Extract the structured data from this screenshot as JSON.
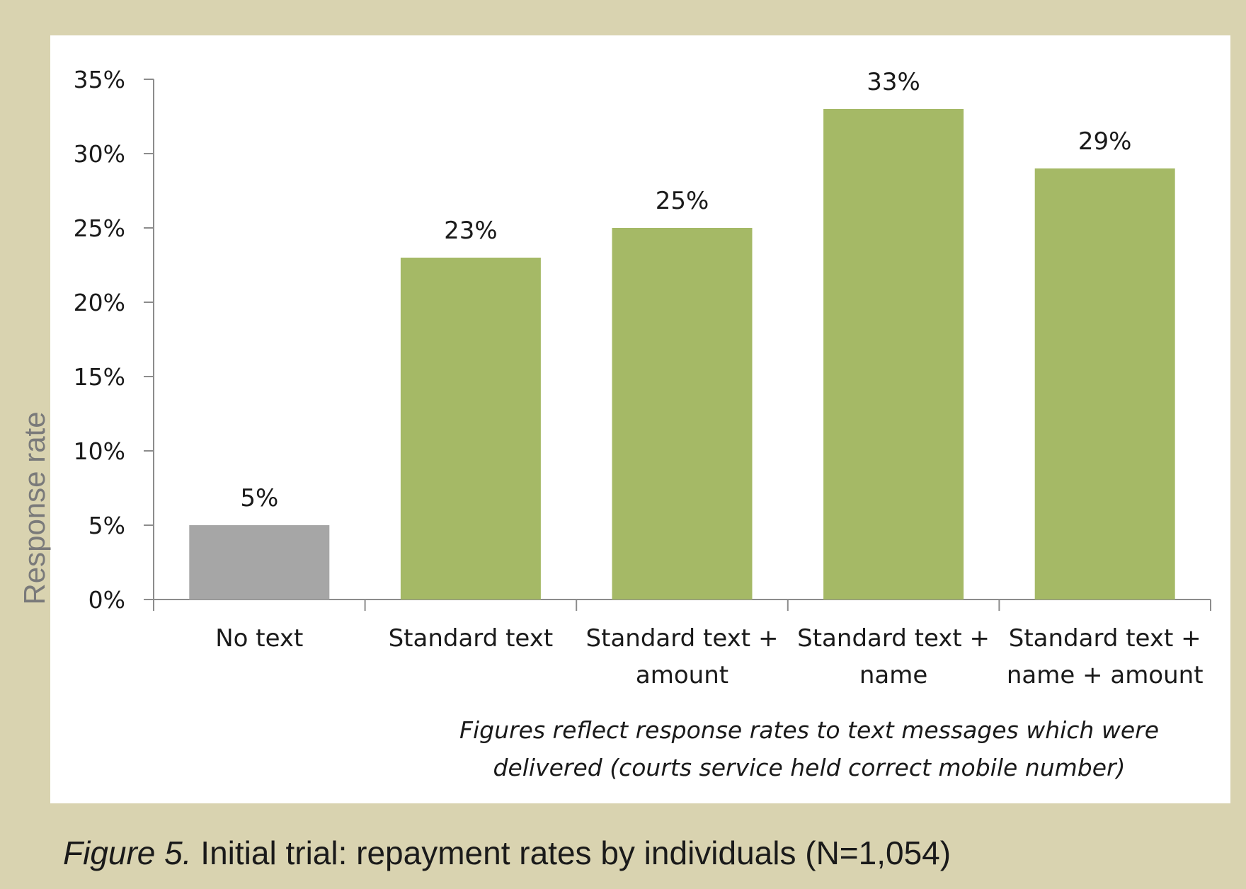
{
  "chart_data": {
    "type": "bar",
    "categories": [
      "No text",
      "Standard text",
      "Standard text +\namount",
      "Standard text +\nname",
      "Standard text +\nname + amount"
    ],
    "values": [
      5,
      23,
      25,
      33,
      29
    ],
    "data_labels": [
      "5%",
      "23%",
      "25%",
      "33%",
      "29%"
    ],
    "bar_colors": [
      "#a6a6a6",
      "#a5b966",
      "#a5b966",
      "#a5b966",
      "#a5b966"
    ],
    "ylabel": "Response rate",
    "xlabel": "",
    "ylim": [
      0,
      35
    ],
    "yticks": [
      0,
      5,
      10,
      15,
      20,
      25,
      30,
      35
    ],
    "ytick_labels": [
      "0%",
      "5%",
      "10%",
      "15%",
      "20%",
      "25%",
      "30%",
      "35%"
    ],
    "grid": false,
    "legend": "none",
    "annotation": "Figures reflect response rates to text messages which were\ndelivered (courts service held correct mobile number)"
  },
  "caption": {
    "figure_label": "Figure 5.",
    "text": " Initial trial: repayment rates by individuals (N=1,054)"
  },
  "colors": {
    "background": "#d9d3b0",
    "panel": "#ffffff",
    "axis": "#8c8c8c",
    "control_bar": "#a6a6a6",
    "treatment_bar": "#a5b966"
  }
}
